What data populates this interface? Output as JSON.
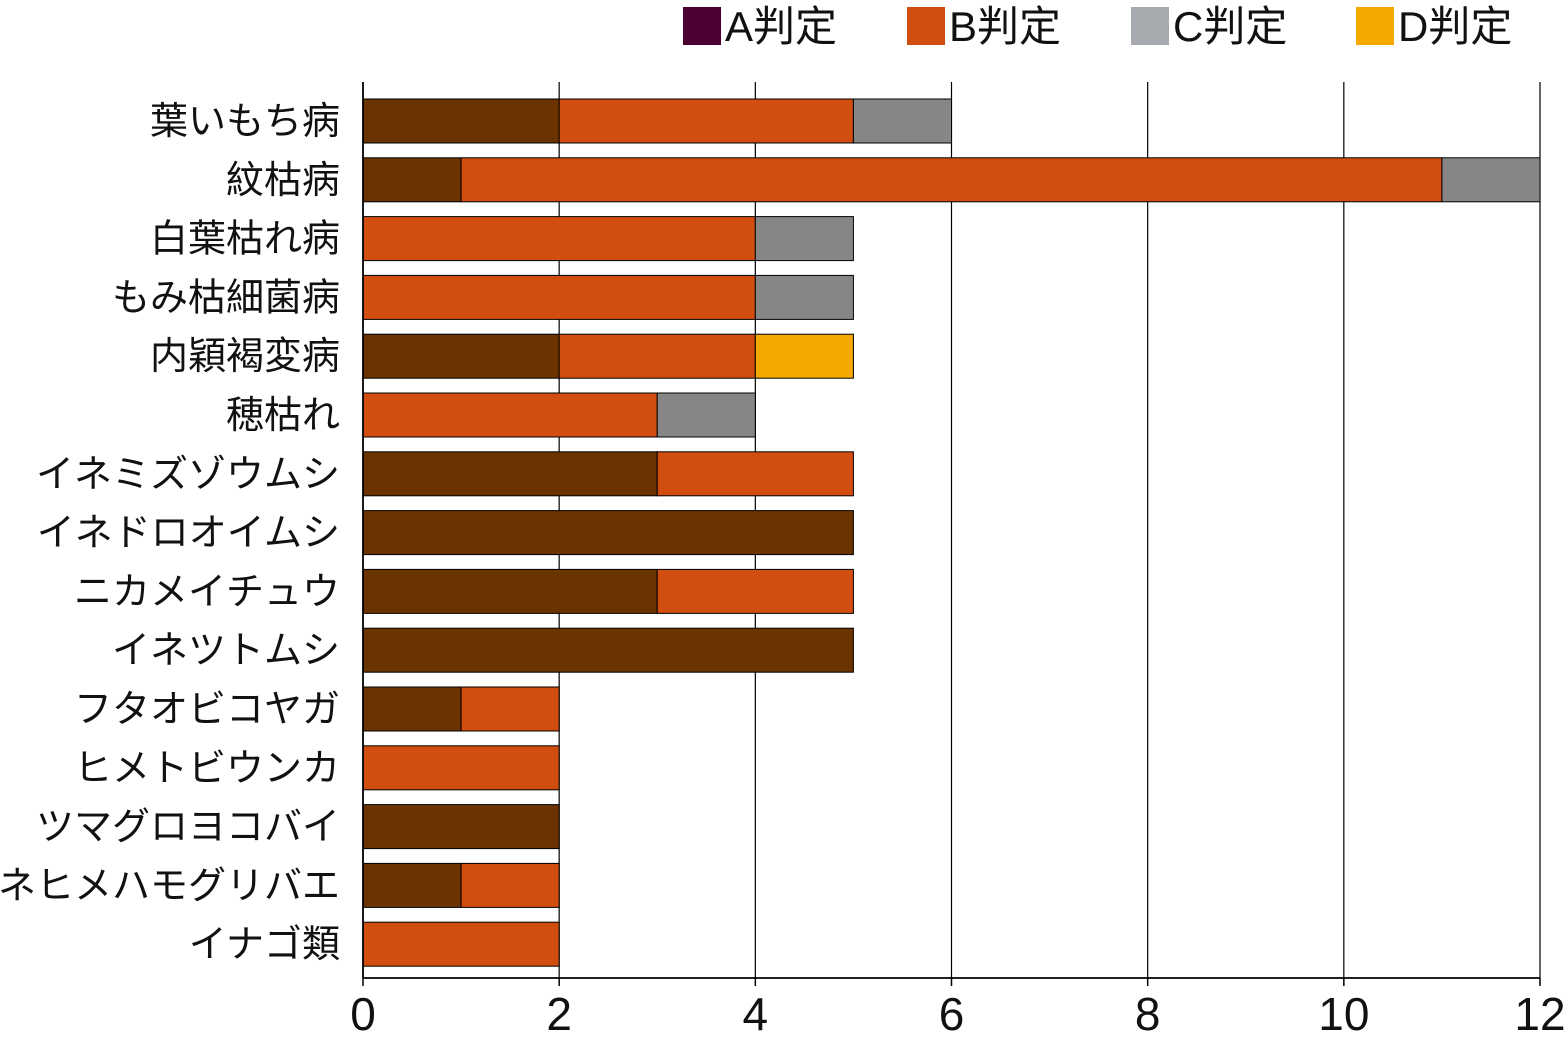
{
  "chart_data": {
    "type": "bar",
    "orientation": "horizontal",
    "stacked": true,
    "categories": [
      "葉いもち病",
      "紋枯病",
      "白葉枯れ病",
      "もみ枯細菌病",
      "内穎褐変病",
      "穂枯れ",
      "イネミズゾウムシ",
      "イネドロオイムシ",
      "ニカメイチュウ",
      "イネツトムシ",
      "フタオビコヤガ",
      "ヒメトビウンカ",
      "ツマグロヨコバイ",
      "イネヒメハモグリバエ",
      "イナゴ類"
    ],
    "series": [
      {
        "name": "A判定",
        "color": "#6b3300",
        "legend_color": "#4a0030",
        "values": [
          2,
          1,
          0,
          0,
          2,
          0,
          3,
          5,
          3,
          5,
          1,
          0,
          2,
          1,
          0
        ]
      },
      {
        "name": "B判定",
        "color": "#d24e10",
        "legend_color": "#d24e10",
        "values": [
          3,
          10,
          4,
          4,
          2,
          3,
          2,
          0,
          2,
          0,
          1,
          2,
          0,
          1,
          2
        ]
      },
      {
        "name": "C判定",
        "color": "#868686",
        "legend_color": "#a6a9ad",
        "values": [
          1,
          1,
          1,
          1,
          0,
          1,
          0,
          0,
          0,
          0,
          0,
          0,
          0,
          0,
          0
        ]
      },
      {
        "name": "D判定",
        "color": "#f5a800",
        "legend_color": "#f5a800",
        "values": [
          0,
          0,
          0,
          0,
          1,
          0,
          0,
          0,
          0,
          0,
          0,
          0,
          0,
          0,
          0
        ]
      }
    ],
    "xlim": [
      0,
      12
    ],
    "xticks": [
      "0",
      "2",
      "4",
      "6",
      "8",
      "10",
      "12"
    ],
    "xlabel": "",
    "ylabel": "",
    "title": "",
    "grid": "vertical",
    "legend_position": "top-right"
  }
}
